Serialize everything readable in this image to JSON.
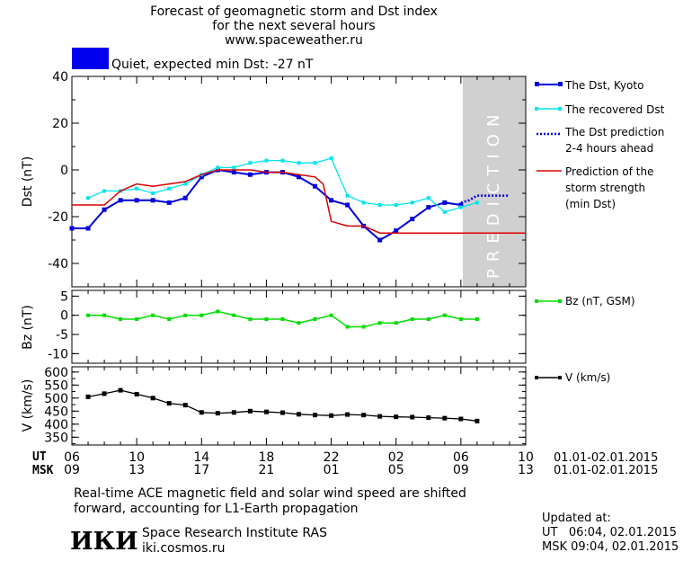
{
  "header": {
    "title_line1": "Forecast of geomagnetic storm and Dst index",
    "title_line2": "for the next several hours",
    "site": "www.spaceweather.ru"
  },
  "status": {
    "text": "Quiet, expected min Dst: -27 nT",
    "color": "#0000ee"
  },
  "prediction_label": "PREDICTION",
  "legends": {
    "dst_kyoto": "The Dst, Kyoto",
    "dst_recovered": "The recovered Dst",
    "dst_prediction_1": "The Dst prediction",
    "dst_prediction_2": "2-4 hours ahead",
    "storm_1": "Prediction of the",
    "storm_2": "storm strength",
    "storm_3": "(min Dst)",
    "bz": "Bz (nT, GSM)",
    "v": "V (km/s)"
  },
  "time_axis": {
    "ut_label": "UT",
    "msk_label": "MSK",
    "ut_ticks": [
      "06",
      "10",
      "14",
      "18",
      "22",
      "02",
      "06",
      "10"
    ],
    "msk_ticks": [
      "09",
      "13",
      "17",
      "21",
      "01",
      "05",
      "09",
      "13"
    ],
    "date_range_ut": "01.01-02.01.2015",
    "date_range_msk": "01.01-02.01.2015"
  },
  "footer": {
    "note_line1": "Real-time ACE magnetic field and solar wind speed are shifted",
    "note_line2": "forward, accounting for L1-Earth propagation",
    "institute": "Space Research Institute RAS",
    "url": "iki.cosmos.ru",
    "logo_text": "ИКИ",
    "updated_label": "Updated at:",
    "updated_ut": "UT   06:04, 02.01.2015",
    "updated_msk": "MSK 09:04, 02.01.2015"
  },
  "colors": {
    "dst_kyoto": "#0000dd",
    "dst_recovered": "#00e5ee",
    "storm": "#dd0000",
    "bz": "#00dd00",
    "v": "#000000",
    "prediction_band": "#d0d0d0"
  },
  "chart_data": [
    {
      "type": "line",
      "ylabel": "Dst (nT)",
      "ylim": [
        -50,
        40
      ],
      "yticks": [
        40,
        20,
        0,
        -20,
        -40
      ],
      "xlim": [
        6,
        34
      ],
      "x_unit": "hours UT from 01.01.2015 00:00",
      "prediction_band": [
        30,
        34
      ],
      "series": [
        {
          "name": "The Dst, Kyoto",
          "x": [
            6,
            7,
            8,
            9,
            10,
            11,
            12,
            13,
            14,
            15,
            16,
            17,
            18,
            19,
            20,
            21,
            22,
            23,
            24,
            25,
            26,
            27,
            28,
            29,
            30
          ],
          "values": [
            -25,
            -25,
            -17,
            -13,
            -13,
            -13,
            -14,
            -12,
            -3,
            0,
            -1,
            -2,
            -1,
            -1,
            -3,
            -7,
            -13,
            -15,
            -24,
            -30,
            -26,
            -21,
            -16,
            -14,
            -15
          ]
        },
        {
          "name": "The recovered Dst",
          "x": [
            7,
            8,
            9,
            10,
            11,
            12,
            13,
            14,
            15,
            16,
            17,
            18,
            19,
            20,
            21,
            22,
            23,
            24,
            25,
            26,
            27,
            28,
            29,
            30,
            31
          ],
          "values": [
            -12,
            -9,
            -9,
            -8,
            -10,
            -8,
            -6,
            -2,
            1,
            1,
            3,
            4,
            4,
            3,
            3,
            5,
            -11,
            -14,
            -15,
            -15,
            -14,
            -12,
            -18,
            -16,
            -14
          ]
        },
        {
          "name": "The Dst prediction 2-4 hours ahead",
          "x": [
            30,
            30.5,
            31,
            31.5,
            32,
            33
          ],
          "values": [
            -14,
            -13,
            -11,
            -11,
            -11,
            -11
          ]
        },
        {
          "name": "Prediction of the storm strength (min Dst)",
          "x": [
            6,
            8,
            9,
            10,
            11,
            12,
            13,
            14,
            15,
            16,
            17,
            18,
            19,
            20,
            21,
            21.5,
            22,
            22.5,
            23,
            24,
            25,
            30,
            34
          ],
          "values": [
            -15,
            -15,
            -9,
            -6,
            -7,
            -6,
            -5,
            -2,
            0,
            0,
            0,
            -1,
            -1,
            -2,
            -3,
            -6,
            -22,
            -23,
            -24,
            -24,
            -27,
            -27,
            -27
          ]
        }
      ]
    },
    {
      "type": "line",
      "ylabel": "Bz (nT)",
      "ylim": [
        -12.5,
        6.5
      ],
      "yticks": [
        5,
        0,
        -5,
        -10
      ],
      "xlim": [
        6,
        34
      ],
      "series": [
        {
          "name": "Bz (nT, GSM)",
          "x": [
            7,
            8,
            9,
            10,
            11,
            12,
            13,
            14,
            15,
            16,
            17,
            18,
            19,
            20,
            21,
            22,
            23,
            24,
            25,
            26,
            27,
            28,
            29,
            30,
            31
          ],
          "values": [
            0,
            0,
            -1,
            -1,
            0,
            -1,
            0,
            0,
            1,
            0,
            -1,
            -1,
            -1,
            -2,
            -1,
            0,
            -3,
            -3,
            -2,
            -2,
            -1,
            -1,
            0,
            -1,
            -1
          ]
        }
      ]
    },
    {
      "type": "line",
      "ylabel": "V (km/s)",
      "ylim": [
        320,
        620
      ],
      "yticks": [
        600,
        550,
        500,
        450,
        400,
        350
      ],
      "xlim": [
        6,
        34
      ],
      "series": [
        {
          "name": "V (km/s)",
          "x": [
            7,
            8,
            9,
            10,
            11,
            12,
            13,
            14,
            15,
            16,
            17,
            18,
            19,
            20,
            21,
            22,
            23,
            24,
            25,
            26,
            27,
            28,
            29,
            30,
            31
          ],
          "values": [
            505,
            517,
            530,
            515,
            500,
            480,
            473,
            445,
            442,
            445,
            450,
            447,
            444,
            438,
            435,
            433,
            437,
            435,
            430,
            428,
            427,
            425,
            423,
            420,
            412
          ]
        }
      ]
    }
  ]
}
